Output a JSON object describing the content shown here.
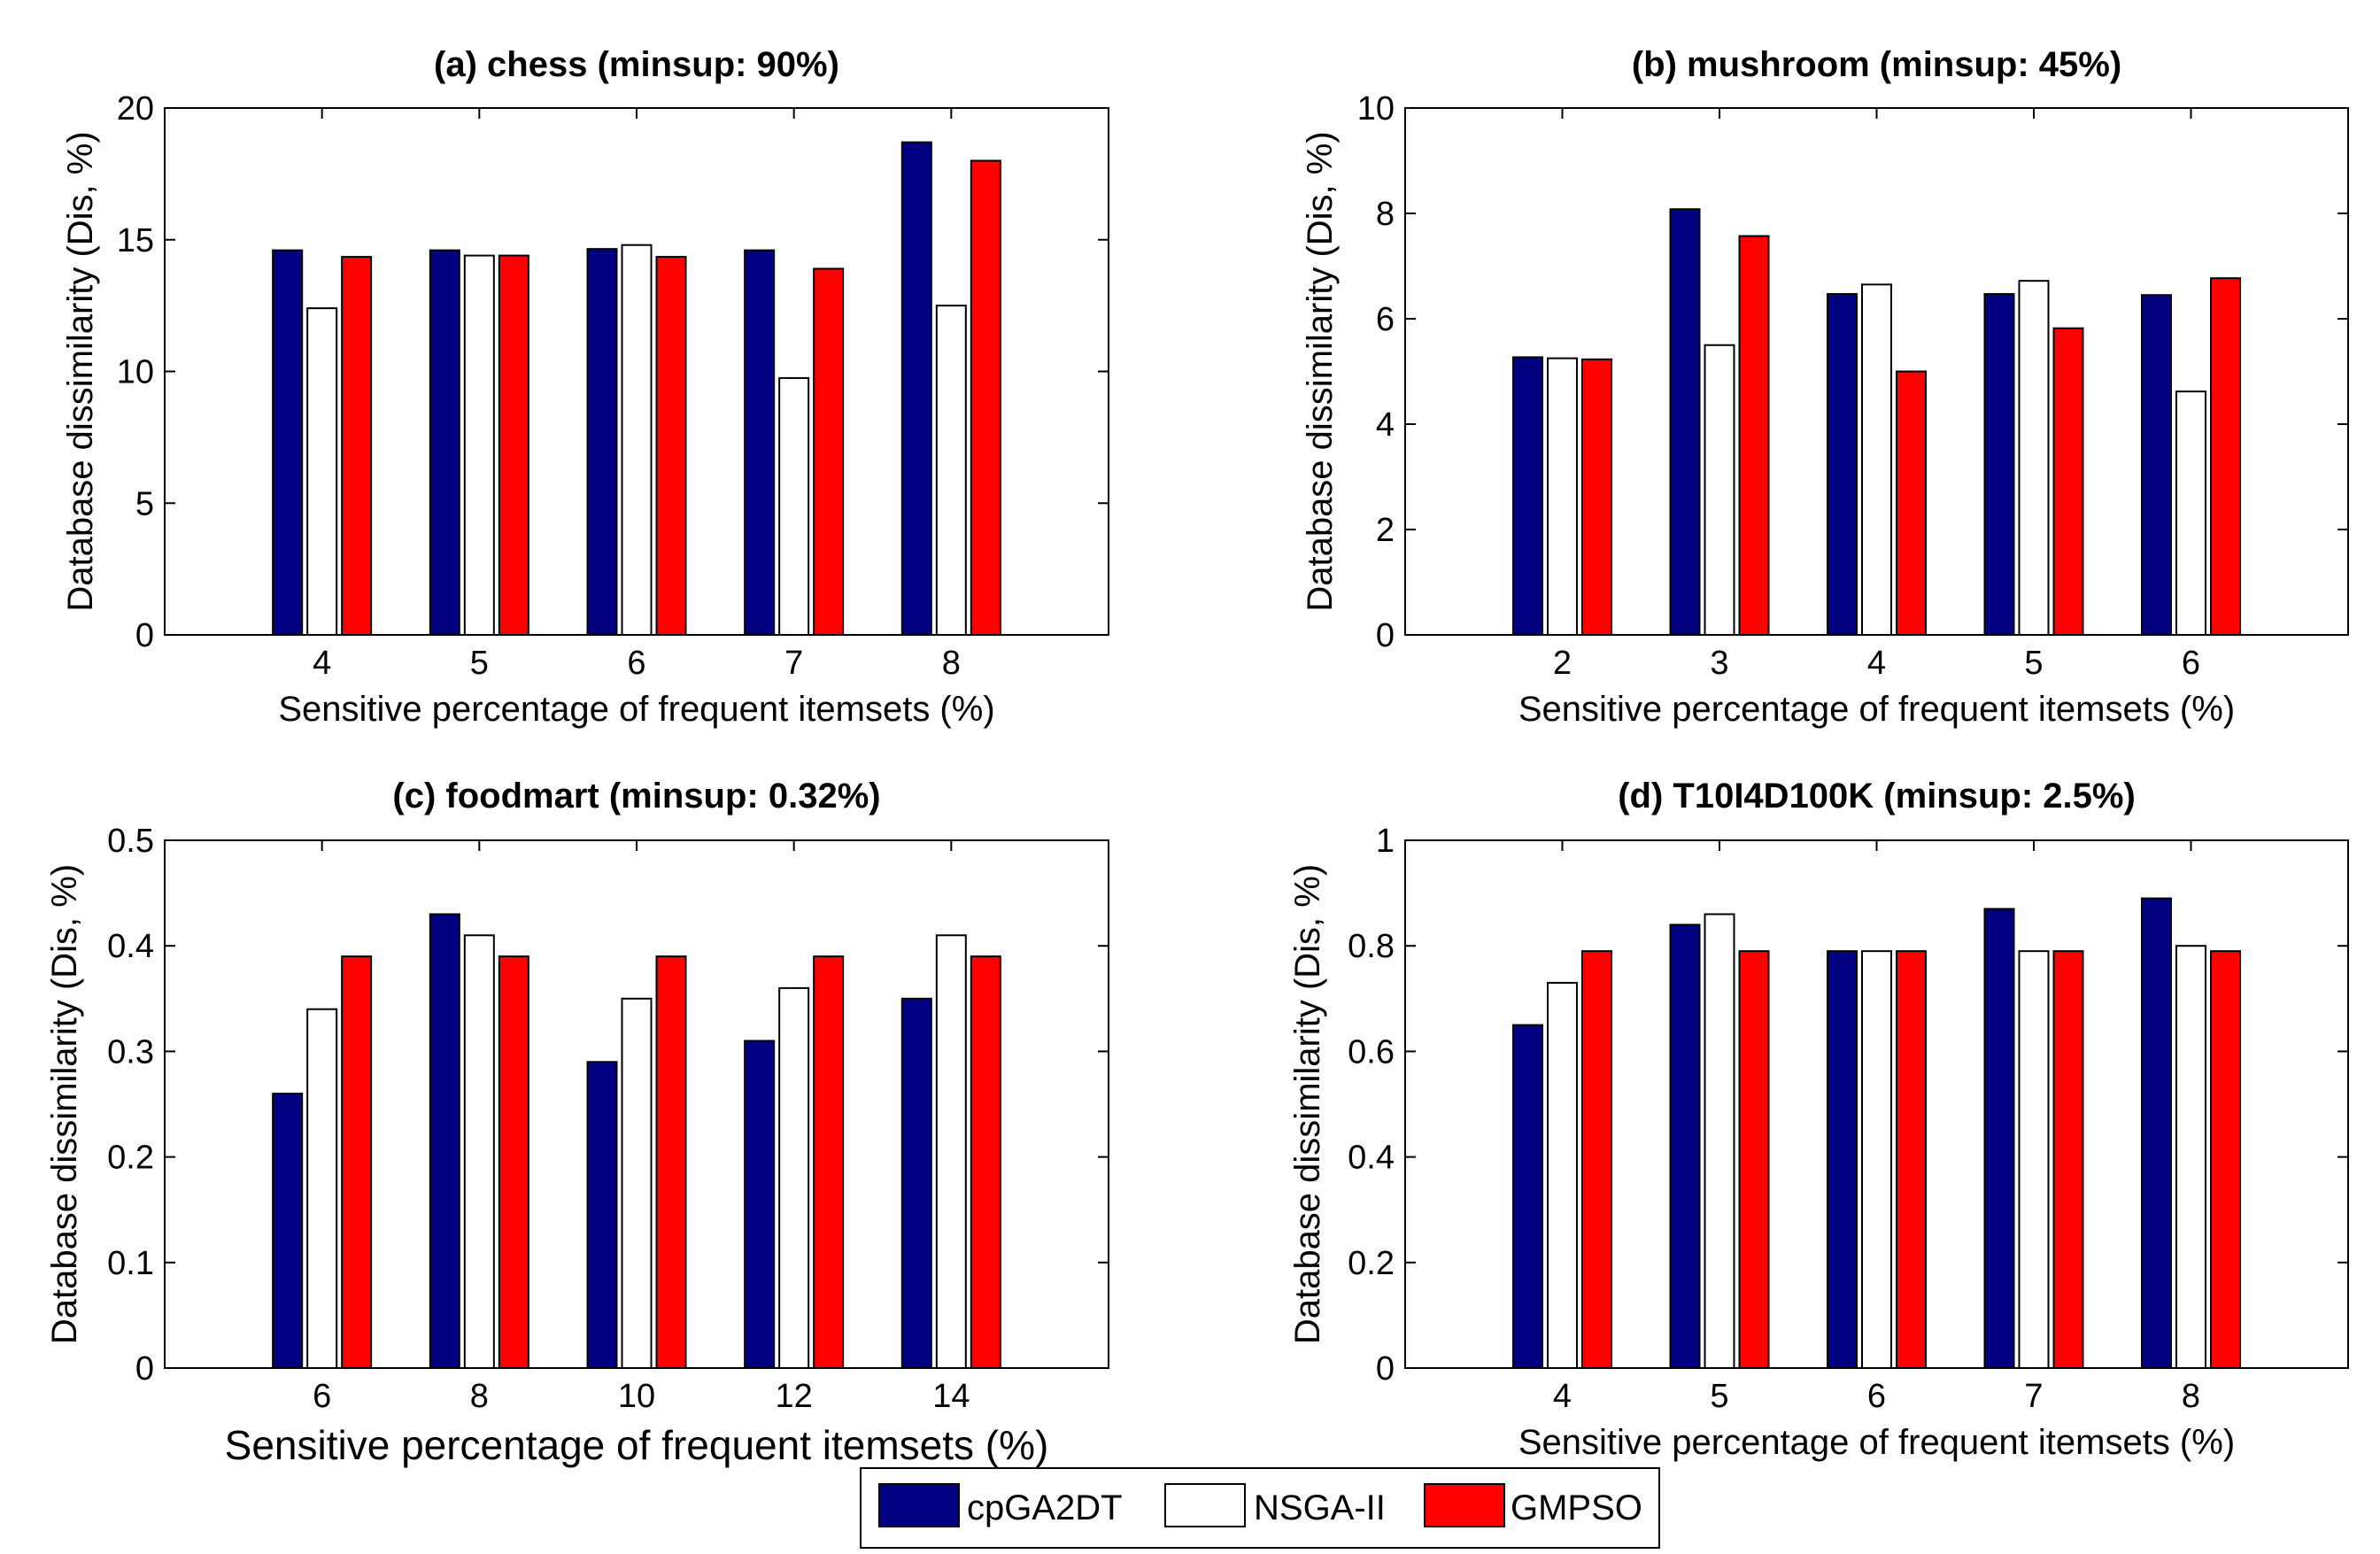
{
  "chart_data": [
    {
      "type": "bar",
      "title": "(a) chess (minsup: 90%)",
      "xlabel": "Sensitive percentage of frequent itemsets (%)",
      "ylabel": "Database dissimilarity (Dis, %)",
      "categories": [
        "4",
        "5",
        "6",
        "7",
        "8"
      ],
      "ylim": [
        0,
        20
      ],
      "yticks": [
        "0",
        "5",
        "10",
        "15",
        "20"
      ],
      "series": [
        {
          "name": "cpGA2DT",
          "values": [
            14.6,
            14.6,
            14.65,
            14.6,
            18.7
          ]
        },
        {
          "name": "NSGA-II",
          "values": [
            12.4,
            14.4,
            14.8,
            9.75,
            12.5
          ]
        },
        {
          "name": "GMPSO",
          "values": [
            14.35,
            14.4,
            14.35,
            13.9,
            18.0
          ]
        }
      ]
    },
    {
      "type": "bar",
      "title": "(b) mushroom (minsup: 45%)",
      "xlabel": "Sensitive percentage of frequent itemsets (%)",
      "ylabel": "Database dissimilarity (Dis, %)",
      "categories": [
        "2",
        "3",
        "4",
        "5",
        "6"
      ],
      "ylim": [
        0,
        10
      ],
      "yticks": [
        "0",
        "2",
        "4",
        "6",
        "8",
        "10"
      ],
      "series": [
        {
          "name": "cpGA2DT",
          "values": [
            5.27,
            8.08,
            6.47,
            6.47,
            6.45
          ]
        },
        {
          "name": "NSGA-II",
          "values": [
            5.25,
            5.5,
            6.65,
            6.72,
            4.62
          ]
        },
        {
          "name": "GMPSO",
          "values": [
            5.23,
            7.57,
            5.0,
            5.82,
            6.77
          ]
        }
      ]
    },
    {
      "type": "bar",
      "title": "(c) foodmart (minsup: 0.32%)",
      "xlabel": "Sensitive percentage of frequent itemsets (%)",
      "ylabel": "Database dissimilarity (Dis, %)",
      "categories": [
        "6",
        "8",
        "10",
        "12",
        "14"
      ],
      "ylim": [
        0,
        0.5
      ],
      "yticks": [
        "0",
        "0.1",
        "0.2",
        "0.3",
        "0.4",
        "0.5"
      ],
      "series": [
        {
          "name": "cpGA2DT",
          "values": [
            0.26,
            0.43,
            0.29,
            0.31,
            0.35
          ]
        },
        {
          "name": "NSGA-II",
          "values": [
            0.34,
            0.41,
            0.35,
            0.36,
            0.41
          ]
        },
        {
          "name": "GMPSO",
          "values": [
            0.39,
            0.39,
            0.39,
            0.39,
            0.39
          ]
        }
      ]
    },
    {
      "type": "bar",
      "title": "(d) T10I4D100K (minsup: 2.5%)",
      "xlabel": "Sensitive percentage of frequent itemsets (%)",
      "ylabel": "Database dissimilarity (Dis, %)",
      "categories": [
        "4",
        "5",
        "6",
        "7",
        "8"
      ],
      "ylim": [
        0,
        1
      ],
      "yticks": [
        "0",
        "0.2",
        "0.4",
        "0.6",
        "0.8",
        "1"
      ],
      "series": [
        {
          "name": "cpGA2DT",
          "values": [
            0.65,
            0.84,
            0.79,
            0.87,
            0.89
          ]
        },
        {
          "name": "NSGA-II",
          "values": [
            0.73,
            0.86,
            0.79,
            0.79,
            0.8
          ]
        },
        {
          "name": "GMPSO",
          "values": [
            0.79,
            0.79,
            0.79,
            0.79,
            0.79
          ]
        }
      ]
    }
  ],
  "legend": {
    "position": "bottom-center",
    "items": [
      {
        "label": "cpGA2DT",
        "color": "#000080"
      },
      {
        "label": "NSGA-II",
        "color": "#ffffff"
      },
      {
        "label": "GMPSO",
        "color": "#ff0000"
      }
    ]
  }
}
